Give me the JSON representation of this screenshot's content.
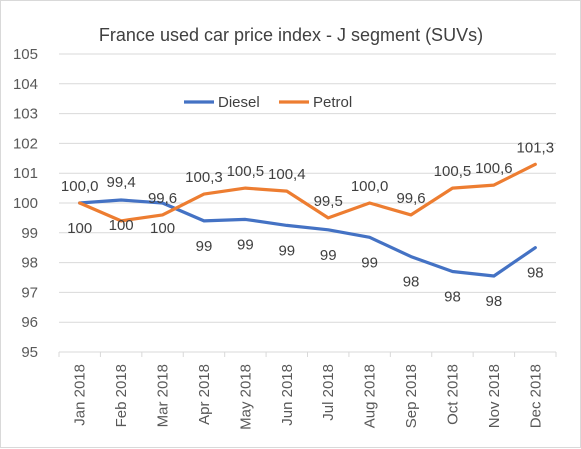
{
  "chart_data": {
    "type": "line",
    "title": "France used car price index - J segment (SUVs)",
    "xlabel": "",
    "ylabel": "",
    "ylim": [
      95,
      105
    ],
    "yticks": [
      95,
      96,
      97,
      98,
      99,
      100,
      101,
      102,
      103,
      104,
      105
    ],
    "grid": true,
    "legend_position": "top",
    "categories": [
      "Jan 2018",
      "Feb 2018",
      "Mar 2018",
      "Apr 2018",
      "May 2018",
      "Jun 2018",
      "Jul 2018",
      "Aug 2018",
      "Sep 2018",
      "Oct 2018",
      "Nov 2018",
      "Dec 2018"
    ],
    "series": [
      {
        "name": "Diesel",
        "color": "#4472c4",
        "values": [
          100.0,
          100.1,
          100.0,
          99.4,
          99.45,
          99.25,
          99.1,
          98.85,
          98.2,
          97.7,
          97.55,
          98.5
        ],
        "labels": [
          "100",
          "100",
          "100",
          "99",
          "99",
          "99",
          "99",
          "99",
          "98",
          "98",
          "98",
          "98"
        ]
      },
      {
        "name": "Petrol",
        "color": "#ed7d31",
        "values": [
          100.0,
          99.4,
          99.6,
          100.3,
          100.5,
          100.4,
          99.5,
          100.0,
          99.6,
          100.5,
          100.6,
          101.3
        ],
        "labels": [
          "100,0",
          "99,4",
          "99,6",
          "100,3",
          "100,5",
          "100,4",
          "99,5",
          "100,0",
          "99,6",
          "100,5",
          "100,6",
          "101,3"
        ]
      }
    ]
  }
}
